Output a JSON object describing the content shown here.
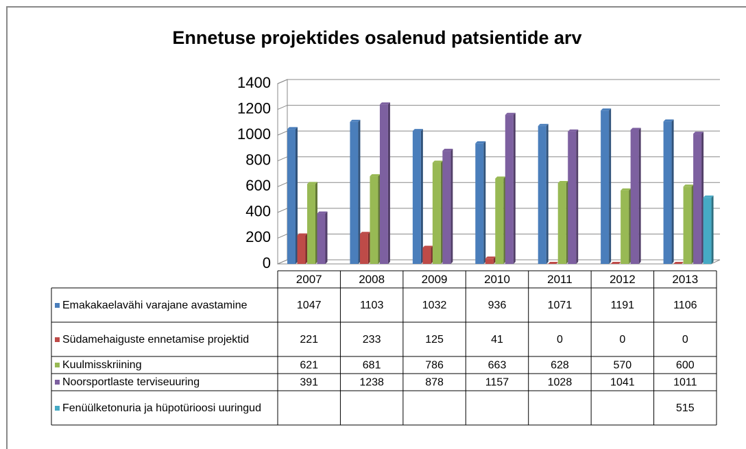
{
  "chart_data": {
    "type": "bar",
    "title": "Ennetuse projektides osalenud patsientide arv",
    "categories": [
      "2007",
      "2008",
      "2009",
      "2010",
      "2011",
      "2012",
      "2013"
    ],
    "series": [
      {
        "name": "Emakakaelavähi varajane avastamine",
        "color": "#4a7ebb",
        "values": [
          1047,
          1103,
          1032,
          936,
          1071,
          1191,
          1106
        ]
      },
      {
        "name": "Südamehaiguste ennetamise projektid",
        "color": "#be4b48",
        "values": [
          221,
          233,
          125,
          41,
          0,
          0,
          0
        ]
      },
      {
        "name": "Kuulmisskriining",
        "color": "#98b954",
        "values": [
          621,
          681,
          786,
          663,
          628,
          570,
          600
        ]
      },
      {
        "name": "Noorsportlaste terviseuuring",
        "color": "#7d60a0",
        "values": [
          391,
          1238,
          878,
          1157,
          1028,
          1041,
          1011
        ]
      },
      {
        "name": "Fenüülketonuria ja hüpotürioosi uuringud",
        "color": "#46aac5",
        "values": [
          null,
          null,
          null,
          null,
          null,
          null,
          515
        ]
      }
    ],
    "ylim": [
      0,
      1400
    ],
    "yticks": [
      0,
      200,
      400,
      600,
      800,
      1000,
      1200,
      1400
    ],
    "grid": true,
    "data_table": true
  }
}
